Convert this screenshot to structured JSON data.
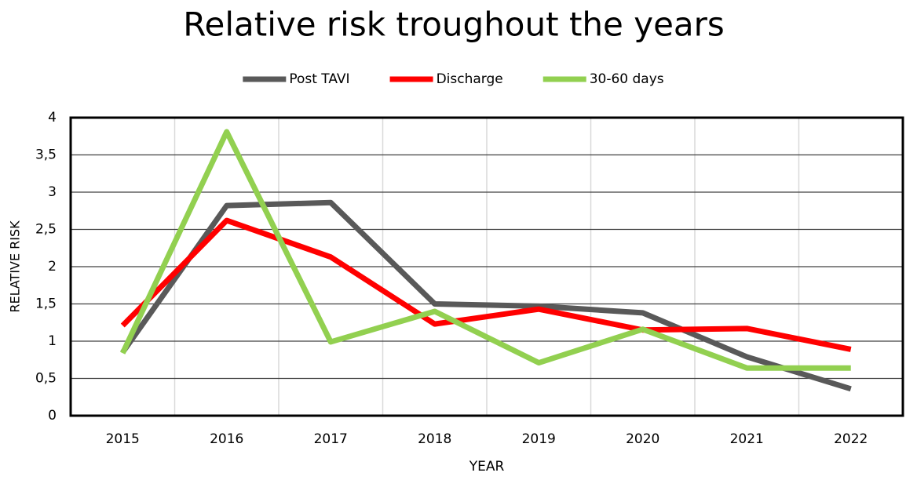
{
  "chart_data": {
    "type": "line",
    "title": "Relative risk troughout the years",
    "x_label": "YEAR",
    "y_label": "RELATIVE RISK",
    "categories": [
      "2015",
      "2016",
      "2017",
      "2018",
      "2019",
      "2020",
      "2021",
      "2022"
    ],
    "series": [
      {
        "name": "Post TAVI",
        "color": "#595959",
        "values": [
          0.85,
          2.82,
          2.86,
          1.5,
          1.47,
          1.38,
          0.79,
          0.36
        ]
      },
      {
        "name": "Discharge",
        "color": "#ff0000",
        "values": [
          1.21,
          2.62,
          2.13,
          1.23,
          1.43,
          1.15,
          1.17,
          0.89
        ]
      },
      {
        "name": "30-60 days",
        "color": "#92d050",
        "values": [
          0.84,
          3.81,
          0.99,
          1.4,
          0.71,
          1.16,
          0.64,
          0.64
        ]
      }
    ],
    "ylim": [
      0,
      4
    ],
    "yticks": [
      0,
      {
        "value": 0.5,
        "label": "0,5"
      },
      1,
      {
        "value": 1.5,
        "label": "1,5"
      },
      2,
      {
        "value": 2.5,
        "label": "2,5"
      },
      3,
      {
        "value": 3.5,
        "label": "3,5"
      },
      4
    ],
    "grid": true,
    "legend": "top"
  }
}
